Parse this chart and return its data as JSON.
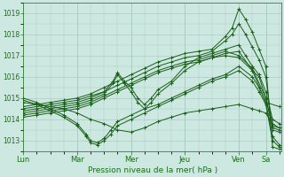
{
  "xlabel": "Pression niveau de la mer( hPa )",
  "bg_color": "#cce8e0",
  "grid_color": "#aaccc4",
  "line_color": "#1a5e1a",
  "ylim": [
    1012.5,
    1019.5
  ],
  "yticks": [
    1013,
    1014,
    1015,
    1016,
    1017,
    1018,
    1019
  ],
  "day_labels": [
    "Lun",
    "Mar",
    "Mer",
    "Jeu",
    "Ven",
    "Sa"
  ],
  "day_positions": [
    0,
    24,
    48,
    72,
    96,
    108
  ],
  "xlim": [
    0,
    115
  ],
  "tick_color": "#1a6e1a",
  "font_color": "#1a6e1a",
  "line_data": [
    {
      "x": [
        0,
        6,
        12,
        18,
        24,
        30,
        36,
        42,
        48,
        54,
        60,
        66,
        72,
        78,
        84,
        90,
        93,
        96,
        99,
        102,
        105,
        108,
        111,
        114
      ],
      "y": [
        1014.6,
        1014.7,
        1014.8,
        1014.9,
        1015.0,
        1015.2,
        1015.5,
        1015.8,
        1016.1,
        1016.4,
        1016.7,
        1016.9,
        1017.1,
        1017.2,
        1017.3,
        1017.9,
        1018.3,
        1019.2,
        1018.7,
        1018.1,
        1017.3,
        1016.5,
        1012.7,
        1012.6
      ]
    },
    {
      "x": [
        0,
        6,
        12,
        18,
        24,
        30,
        36,
        42,
        48,
        54,
        60,
        66,
        72,
        78,
        84,
        90,
        93,
        96,
        99,
        102,
        105,
        108,
        111,
        114
      ],
      "y": [
        1014.5,
        1014.6,
        1014.7,
        1014.8,
        1014.9,
        1015.1,
        1015.3,
        1015.6,
        1015.9,
        1016.2,
        1016.5,
        1016.7,
        1016.9,
        1017.0,
        1017.2,
        1017.7,
        1018.0,
        1018.5,
        1018.0,
        1017.4,
        1016.8,
        1016.0,
        1013.5,
        1013.4
      ]
    },
    {
      "x": [
        0,
        6,
        12,
        18,
        24,
        30,
        36,
        40,
        42,
        45,
        48,
        51,
        54,
        57,
        60,
        66,
        72,
        78,
        84,
        90,
        96,
        99,
        102,
        105,
        108,
        111,
        114
      ],
      "y": [
        1014.4,
        1014.5,
        1014.6,
        1014.7,
        1014.8,
        1015.0,
        1015.3,
        1015.8,
        1016.2,
        1015.8,
        1015.5,
        1015.0,
        1014.7,
        1015.0,
        1015.4,
        1015.8,
        1016.5,
        1016.9,
        1017.1,
        1017.3,
        1017.5,
        1017.0,
        1016.5,
        1016.1,
        1015.3,
        1014.0,
        1013.8
      ]
    },
    {
      "x": [
        0,
        6,
        12,
        18,
        24,
        30,
        36,
        40,
        42,
        45,
        48,
        51,
        54,
        57,
        60,
        66,
        72,
        78,
        84,
        90,
        96,
        102,
        105,
        108,
        111,
        114
      ],
      "y": [
        1014.3,
        1014.4,
        1014.5,
        1014.6,
        1014.7,
        1014.9,
        1015.2,
        1015.7,
        1016.1,
        1015.7,
        1015.3,
        1014.8,
        1014.5,
        1014.8,
        1015.2,
        1015.7,
        1016.3,
        1016.7,
        1016.9,
        1017.1,
        1017.2,
        1016.3,
        1016.0,
        1015.0,
        1013.7,
        1013.6
      ]
    },
    {
      "x": [
        0,
        6,
        12,
        18,
        24,
        30,
        36,
        42,
        48,
        54,
        60,
        66,
        72,
        78,
        84,
        90,
        96,
        102,
        105,
        108,
        111,
        114
      ],
      "y": [
        1014.8,
        1014.7,
        1014.6,
        1014.5,
        1014.3,
        1014.0,
        1013.8,
        1013.5,
        1013.4,
        1013.6,
        1013.9,
        1014.1,
        1014.3,
        1014.4,
        1014.5,
        1014.6,
        1014.7,
        1014.5,
        1014.4,
        1014.3,
        1013.8,
        1013.6
      ]
    },
    {
      "x": [
        0,
        6,
        12,
        18,
        24,
        28,
        30,
        33,
        36,
        39,
        42,
        48,
        54,
        60,
        66,
        72,
        78,
        84,
        90,
        96,
        102,
        105,
        108,
        111,
        114
      ],
      "y": [
        1015.0,
        1014.8,
        1014.5,
        1014.2,
        1013.8,
        1013.3,
        1013.0,
        1012.9,
        1013.1,
        1013.5,
        1013.9,
        1014.2,
        1014.5,
        1014.7,
        1015.0,
        1015.3,
        1015.6,
        1015.9,
        1016.1,
        1016.5,
        1016.0,
        1015.5,
        1014.8,
        1013.2,
        1012.8
      ]
    },
    {
      "x": [
        0,
        6,
        12,
        18,
        24,
        28,
        30,
        33,
        36,
        39,
        42,
        48,
        54,
        60,
        66,
        72,
        78,
        84,
        90,
        96,
        102,
        105,
        108,
        111,
        114
      ],
      "y": [
        1014.9,
        1014.7,
        1014.4,
        1014.1,
        1013.7,
        1013.2,
        1012.9,
        1012.8,
        1013.0,
        1013.3,
        1013.7,
        1014.0,
        1014.3,
        1014.6,
        1014.9,
        1015.2,
        1015.5,
        1015.8,
        1016.0,
        1016.3,
        1015.8,
        1015.3,
        1014.7,
        1013.0,
        1012.7
      ]
    },
    {
      "x": [
        0,
        6,
        12,
        18,
        24,
        30,
        36,
        42,
        48,
        54,
        60,
        66,
        72,
        78,
        84,
        90,
        96,
        102,
        108,
        111,
        114
      ],
      "y": [
        1014.2,
        1014.3,
        1014.4,
        1014.5,
        1014.6,
        1014.8,
        1015.1,
        1015.4,
        1015.7,
        1016.0,
        1016.3,
        1016.5,
        1016.7,
        1016.8,
        1017.0,
        1017.2,
        1017.0,
        1016.4,
        1015.0,
        1013.6,
        1013.5
      ]
    },
    {
      "x": [
        0,
        6,
        12,
        18,
        24,
        30,
        36,
        42,
        48,
        54,
        60,
        66,
        72,
        78,
        84,
        90,
        96,
        102,
        108,
        114
      ],
      "y": [
        1014.1,
        1014.2,
        1014.3,
        1014.4,
        1014.5,
        1014.7,
        1015.0,
        1015.3,
        1015.6,
        1015.9,
        1016.2,
        1016.4,
        1016.6,
        1016.7,
        1016.9,
        1017.0,
        1016.9,
        1016.3,
        1014.8,
        1014.6
      ]
    }
  ]
}
